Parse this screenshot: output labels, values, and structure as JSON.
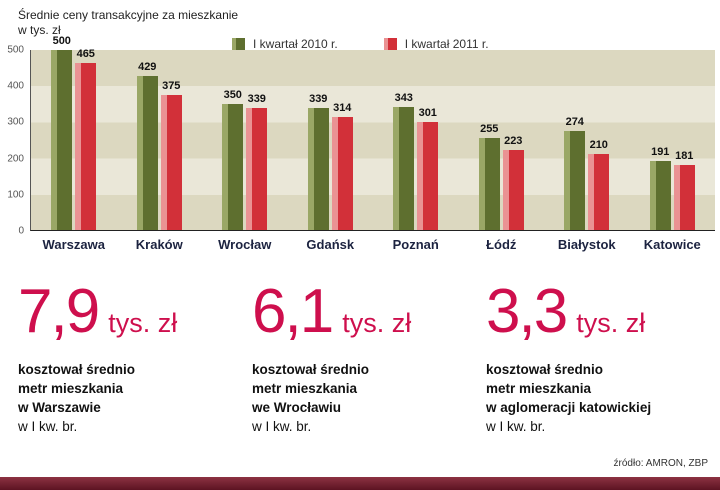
{
  "header": {
    "title_line1": "Średnie ceny transakcyjne za mieszkanie",
    "title_line2": "w tys. zł"
  },
  "chart_data": {
    "type": "bar",
    "title": "Średnie ceny transakcyjne za mieszkanie w tys. zł",
    "categories": [
      "Warszawa",
      "Kraków",
      "Wrocław",
      "Gdańsk",
      "Poznań",
      "Łódź",
      "Białystok",
      "Katowice"
    ],
    "series": [
      {
        "name": "I kwartał 2010 r.",
        "color": "#5e6f2f",
        "highlight": "#9aa766",
        "values": [
          500,
          429,
          350,
          339,
          343,
          255,
          274,
          191
        ]
      },
      {
        "name": "I kwartał 2011 r.",
        "color": "#d23039",
        "highlight": "#ea9293",
        "values": [
          465,
          375,
          339,
          314,
          301,
          223,
          210,
          181
        ]
      }
    ],
    "xlabel": "",
    "ylabel": "tys. zł",
    "ylim": [
      0,
      500
    ],
    "yticks": [
      0,
      100,
      200,
      300,
      400,
      500
    ],
    "grid": true,
    "legend_position": "top"
  },
  "stats": [
    {
      "value": "7,9",
      "unit": "tys. zł",
      "line1": "kosztował średnio",
      "line2": "metr mieszkania",
      "line3": "w Warszawie",
      "line4": "w I kw. br."
    },
    {
      "value": "6,1",
      "unit": "tys. zł",
      "line1": "kosztował średnio",
      "line2": "metr mieszkania",
      "line3": "we Wrocławiu",
      "line4": "w I kw. br."
    },
    {
      "value": "3,3",
      "unit": "tys. zł",
      "line1": "kosztował średnio",
      "line2": "metr mieszkania",
      "line3": "w aglomeracji katowickiej",
      "line4": "w I kw. br."
    }
  ],
  "source": "źródło: AMRON,  ZBP",
  "colors": {
    "accent": "#ce0f4d",
    "footer_bar": "#5c1322",
    "stripe_dark": "#dcd8c0",
    "stripe_light": "#eae7d8"
  }
}
